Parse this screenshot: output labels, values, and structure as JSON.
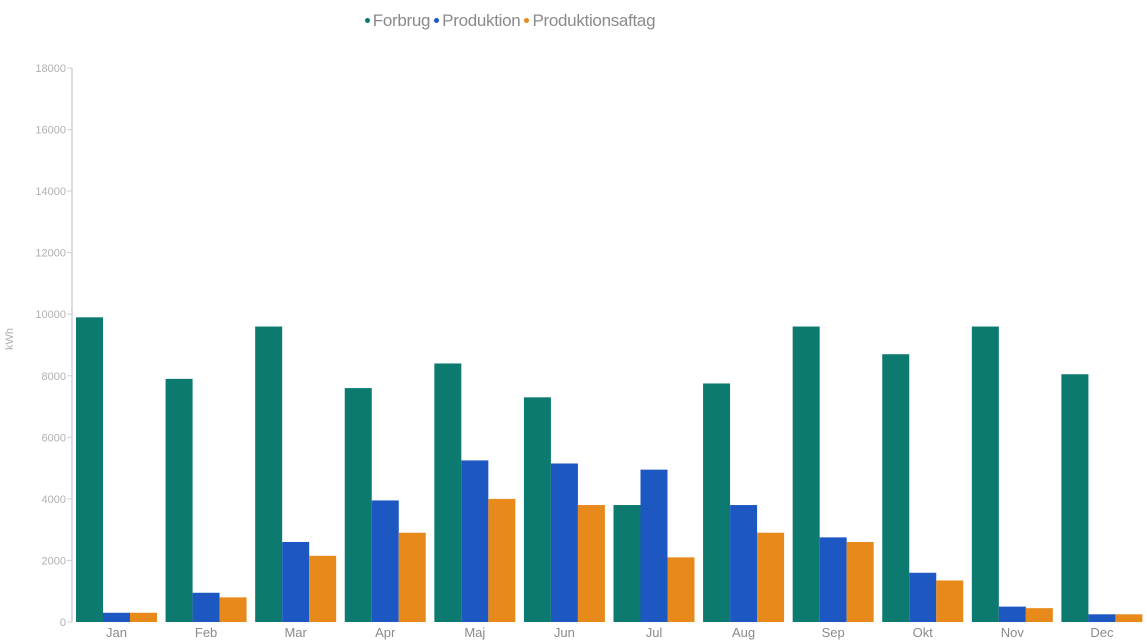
{
  "chart_data": {
    "type": "bar",
    "title": "",
    "xlabel": "",
    "ylabel": "kWh",
    "ylim": [
      0,
      18000
    ],
    "yticks": [
      0,
      2000,
      4000,
      6000,
      8000,
      10000,
      12000,
      14000,
      16000,
      18000
    ],
    "categories": [
      "Jan",
      "Feb",
      "Mar",
      "Apr",
      "Maj",
      "Jun",
      "Jul",
      "Aug",
      "Sep",
      "Okt",
      "Nov",
      "Dec"
    ],
    "series": [
      {
        "name": "Forbrug",
        "color": "#0c7a6e",
        "values": [
          9900,
          7900,
          9600,
          7600,
          8400,
          7300,
          3800,
          7750,
          9600,
          8700,
          9600,
          8050
        ]
      },
      {
        "name": "Produktion",
        "color": "#1d57c2",
        "values": [
          300,
          950,
          2600,
          3950,
          5250,
          5150,
          4950,
          3800,
          2750,
          1600,
          500,
          250
        ]
      },
      {
        "name": "Produktionsaftag",
        "color": "#e8891c",
        "values": [
          300,
          800,
          2150,
          2900,
          4000,
          3800,
          2100,
          2900,
          2600,
          1350,
          450,
          250
        ]
      }
    ],
    "legend_position": "top-center",
    "grid": false
  }
}
